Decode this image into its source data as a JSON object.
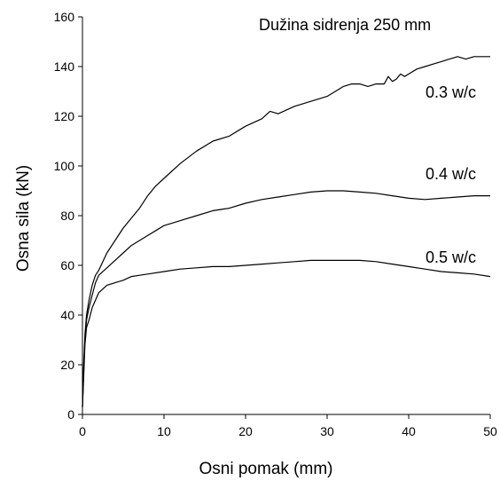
{
  "chart_data": {
    "type": "line",
    "title": "",
    "annotation": "Dužina sidrenja 250 mm",
    "xlabel": "Osni pomak (mm)",
    "ylabel": "Osna sila (kN)",
    "xlim": [
      0,
      50
    ],
    "ylim": [
      0,
      160
    ],
    "xticks": [
      0,
      10,
      20,
      30,
      40,
      50
    ],
    "yticks": [
      0,
      20,
      40,
      60,
      80,
      100,
      120,
      140,
      160
    ],
    "grid": false,
    "line_color": "#000000",
    "series": [
      {
        "name": "0.3 w/c",
        "x": [
          0,
          0.15,
          0.3,
          0.5,
          0.8,
          1.2,
          1.6,
          2,
          3,
          4,
          5,
          6,
          7,
          8,
          9,
          10,
          12,
          14,
          16,
          18,
          20,
          22,
          23,
          24,
          26,
          28,
          30,
          31,
          32,
          33,
          34,
          35,
          36,
          37,
          37.5,
          38,
          38.5,
          39,
          39.5,
          40,
          41,
          42,
          43,
          44,
          45,
          46,
          47,
          48,
          49,
          50
        ],
        "y": [
          3,
          20,
          32,
          40,
          46,
          52,
          56,
          58,
          65,
          70,
          75,
          79,
          83,
          88,
          92,
          95,
          101,
          106,
          110,
          112,
          116,
          119,
          122,
          121,
          124,
          126,
          128,
          130,
          132,
          133,
          133,
          132,
          133,
          133,
          136,
          134,
          135,
          137,
          136,
          137,
          139,
          140,
          141,
          142,
          143,
          144,
          143,
          144,
          144,
          144
        ]
      },
      {
        "name": "0.4 w/c",
        "x": [
          0,
          0.15,
          0.3,
          0.5,
          0.8,
          1.2,
          1.6,
          2,
          3,
          4,
          5,
          6,
          7,
          8,
          9,
          10,
          11,
          12,
          14,
          16,
          18,
          20,
          22,
          24,
          26,
          28,
          30,
          32,
          34,
          36,
          38,
          40,
          42,
          44,
          46,
          48,
          50
        ],
        "y": [
          3,
          18,
          30,
          38,
          43,
          48,
          53,
          56,
          59,
          62,
          65,
          68,
          70,
          72,
          74,
          76,
          77,
          78,
          80,
          82,
          83,
          85,
          86.5,
          87.5,
          88.5,
          89.5,
          90,
          90,
          89.5,
          89,
          88,
          87,
          86.5,
          87,
          87.5,
          88,
          88
        ]
      },
      {
        "name": "0.5 w/c",
        "x": [
          0,
          0.15,
          0.3,
          0.5,
          0.8,
          1.2,
          1.6,
          2,
          3,
          4,
          5,
          6,
          7,
          8,
          10,
          12,
          14,
          16,
          18,
          20,
          22,
          24,
          26,
          28,
          30,
          32,
          34,
          36,
          38,
          40,
          42,
          44,
          46,
          48,
          50
        ],
        "y": [
          3,
          15,
          28,
          35,
          38,
          43,
          46,
          49,
          52,
          53,
          54,
          55.5,
          56,
          56.5,
          57.5,
          58.5,
          59,
          59.5,
          59.5,
          60,
          60.5,
          61,
          61.5,
          62,
          62,
          62,
          62,
          61.5,
          60.5,
          59.5,
          58.5,
          57.5,
          57,
          56.5,
          55.5
        ]
      }
    ]
  }
}
